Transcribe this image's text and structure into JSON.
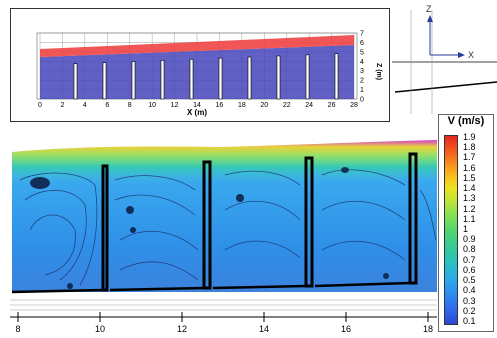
{
  "colors": {
    "background": "#ffffff",
    "fluid_low": "#2b66d9",
    "fluid_mid": "#3fb6f2",
    "free_surface_top": "#ff2a2a",
    "baffle": "#000000",
    "grid": "#bbbbbb"
  },
  "inset": {
    "x_axis_label": "X (m)",
    "z_axis_label": "Z (m)",
    "x_ticks": [
      "0",
      "2",
      "4",
      "6",
      "8",
      "10",
      "12",
      "14",
      "16",
      "18",
      "20",
      "22",
      "24",
      "26",
      "28"
    ],
    "z_ticks": [
      "0",
      "1",
      "2",
      "3",
      "4",
      "5",
      "6",
      "7"
    ]
  },
  "axes_triad": {
    "z_label": "Z",
    "x_label": "X"
  },
  "main_axis": {
    "x_ticks": [
      "8",
      "10",
      "12",
      "14",
      "16",
      "18"
    ]
  },
  "legend": {
    "title": "V (m/s)",
    "labels": [
      "1.9",
      "1.8",
      "1.7",
      "1.6",
      "1.5",
      "1.4",
      "1.3",
      "1.2",
      "1.1",
      "1",
      "0.9",
      "0.8",
      "0.7",
      "0.6",
      "0.5",
      "0.4",
      "0.3",
      "0.2",
      "0.1"
    ],
    "colors": [
      "#e8261f",
      "#f04a1f",
      "#f5721d",
      "#f99c1d",
      "#f7c31e",
      "#eee224",
      "#c8e532",
      "#9ee247",
      "#76de5b",
      "#56d46f",
      "#3fcf85",
      "#31c9a0",
      "#2cc1bd",
      "#2ab5d8",
      "#2ba3ea",
      "#2d8ff2",
      "#2f78ef",
      "#3060e6",
      "#3047d4"
    ]
  }
}
